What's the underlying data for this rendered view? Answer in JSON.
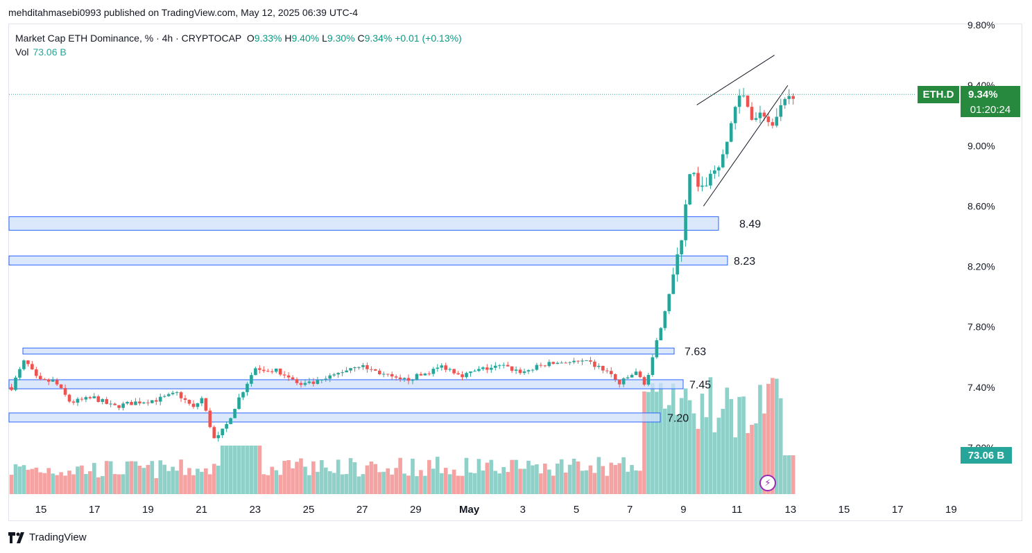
{
  "header": {
    "publisher_line": "mehditahmasebi0993 published on TradingView.com, May 12, 2025 06:39 UTC-4"
  },
  "legend": {
    "symbol": "Market Cap ETH Dominance, % · 4h · CRYPTOCAP",
    "open_label": "O",
    "open": "9.33%",
    "high_label": "H",
    "high": "9.40%",
    "low_label": "L",
    "low": "9.30%",
    "close_label": "C",
    "close": "9.34%",
    "change": "+0.01 (+0.13%)",
    "vol_label": "Vol",
    "vol_value": "73.06 B"
  },
  "price_tag": {
    "ticker": "ETH.D",
    "price": "9.34%",
    "countdown": "01:20:24"
  },
  "volume_tag": "73.06 B",
  "brand": "TradingView",
  "colors": {
    "up": "#26a69a",
    "down": "#ef5350",
    "vol_up": "#8fd1c9",
    "vol_down": "#f4a3a2",
    "zone_fill": "#cfe0fb",
    "zone_stroke": "#2962ff",
    "tag_green": "#26893d",
    "grid": "#f0f3fa"
  },
  "chart_data": {
    "type": "candlestick",
    "timeframe": "4h",
    "ylim": [
      7.0,
      9.8
    ],
    "yticks": [
      "9.80%",
      "9.40%",
      "9.00%",
      "8.60%",
      "8.20%",
      "7.80%",
      "7.40%",
      "7.00%"
    ],
    "yticks_values": [
      9.8,
      9.4,
      9.0,
      8.6,
      8.2,
      7.8,
      7.4,
      7.0
    ],
    "xticks": [
      "15",
      "17",
      "19",
      "21",
      "23",
      "25",
      "27",
      "29",
      "May",
      "3",
      "5",
      "7",
      "9",
      "11",
      "13",
      "15",
      "17",
      "19"
    ],
    "current_price": 9.34,
    "levels": [
      {
        "label": "8.49",
        "low": 8.44,
        "high": 8.53
      },
      {
        "label": "8.23",
        "low": 8.21,
        "high": 8.27
      },
      {
        "label": "7.63",
        "low": 7.62,
        "high": 7.66
      },
      {
        "label": "7.45",
        "low": 7.39,
        "high": 7.45
      },
      {
        "label": "7.20",
        "low": 7.17,
        "high": 7.23
      }
    ],
    "channel": [
      {
        "p1": [
          8.5,
          9.27
        ],
        "p2": [
          11.4,
          9.6
        ]
      },
      {
        "p1": [
          8.75,
          8.6
        ],
        "p2": [
          11.9,
          9.4
        ]
      }
    ]
  }
}
